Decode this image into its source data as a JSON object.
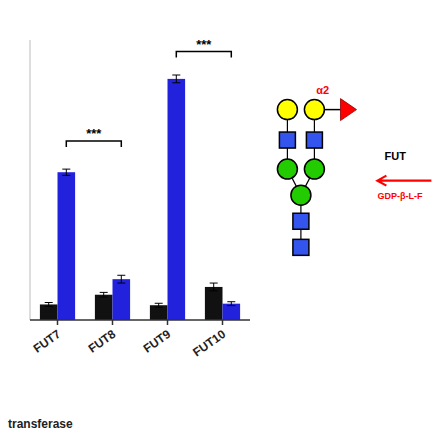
{
  "chart_data": {
    "type": "bar",
    "categories": [
      "FUT7",
      "FUT8",
      "FUT9",
      "FUT10"
    ],
    "series": [
      {
        "color": "#111111",
        "values": [
          0.04,
          0.065,
          0.038,
          0.085
        ],
        "errors": [
          0.005,
          0.006,
          0.005,
          0.01
        ]
      },
      {
        "color": "#2222DD",
        "values": [
          0.38,
          0.105,
          0.62,
          0.042
        ],
        "errors": [
          0.008,
          0.01,
          0.01,
          0.005
        ]
      }
    ],
    "ylim": [
      0,
      0.72
    ],
    "tick_labels": "x",
    "grid": false,
    "significance": [
      {
        "from": "FUT7",
        "to": "FUT8",
        "y": 0.445,
        "label": "***"
      },
      {
        "from": "FUT9",
        "to": "FUT10",
        "y": 0.675,
        "label": "***"
      }
    ],
    "annotations": [
      "transferase",
      "α2",
      "FUT",
      "GDP-β-L-F"
    ]
  }
}
